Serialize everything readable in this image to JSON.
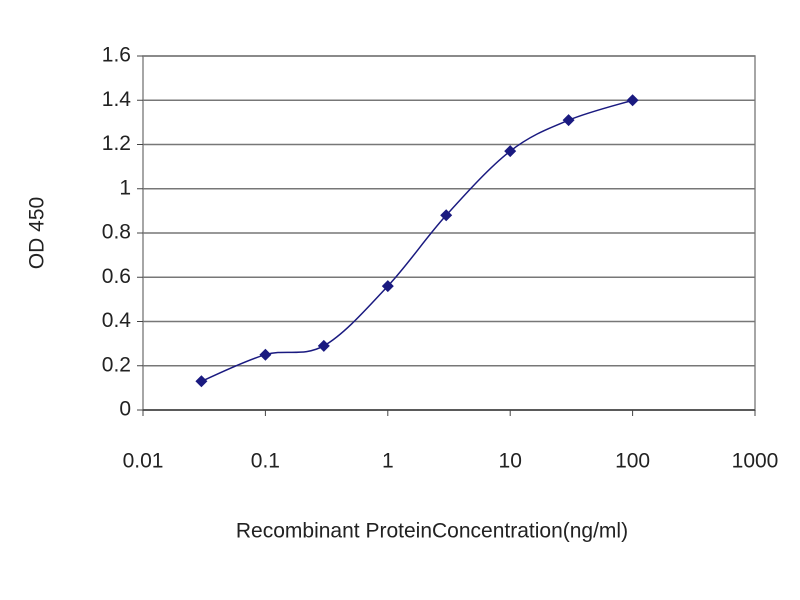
{
  "chart_data": {
    "type": "line",
    "x_label": "Recombinant ProteinConcentration(ng/ml)",
    "y_label": "OD 450",
    "x": [
      0.03,
      0.1,
      0.3,
      1,
      3,
      10,
      30,
      100
    ],
    "series": [
      {
        "color": "#1a1a80",
        "values": [
          0.13,
          0.25,
          0.29,
          0.56,
          0.88,
          1.17,
          1.31,
          1.4
        ]
      }
    ],
    "xlim": [
      0.01,
      1000
    ],
    "xticks": [
      0.01,
      0.1,
      1,
      10,
      100,
      1000
    ],
    "xscale": "log",
    "ylim": [
      0,
      1.6
    ],
    "yticks": [
      0,
      0.2,
      0.4,
      0.6,
      0.8,
      1,
      1.2,
      1.4,
      1.6
    ],
    "grid": true
  }
}
